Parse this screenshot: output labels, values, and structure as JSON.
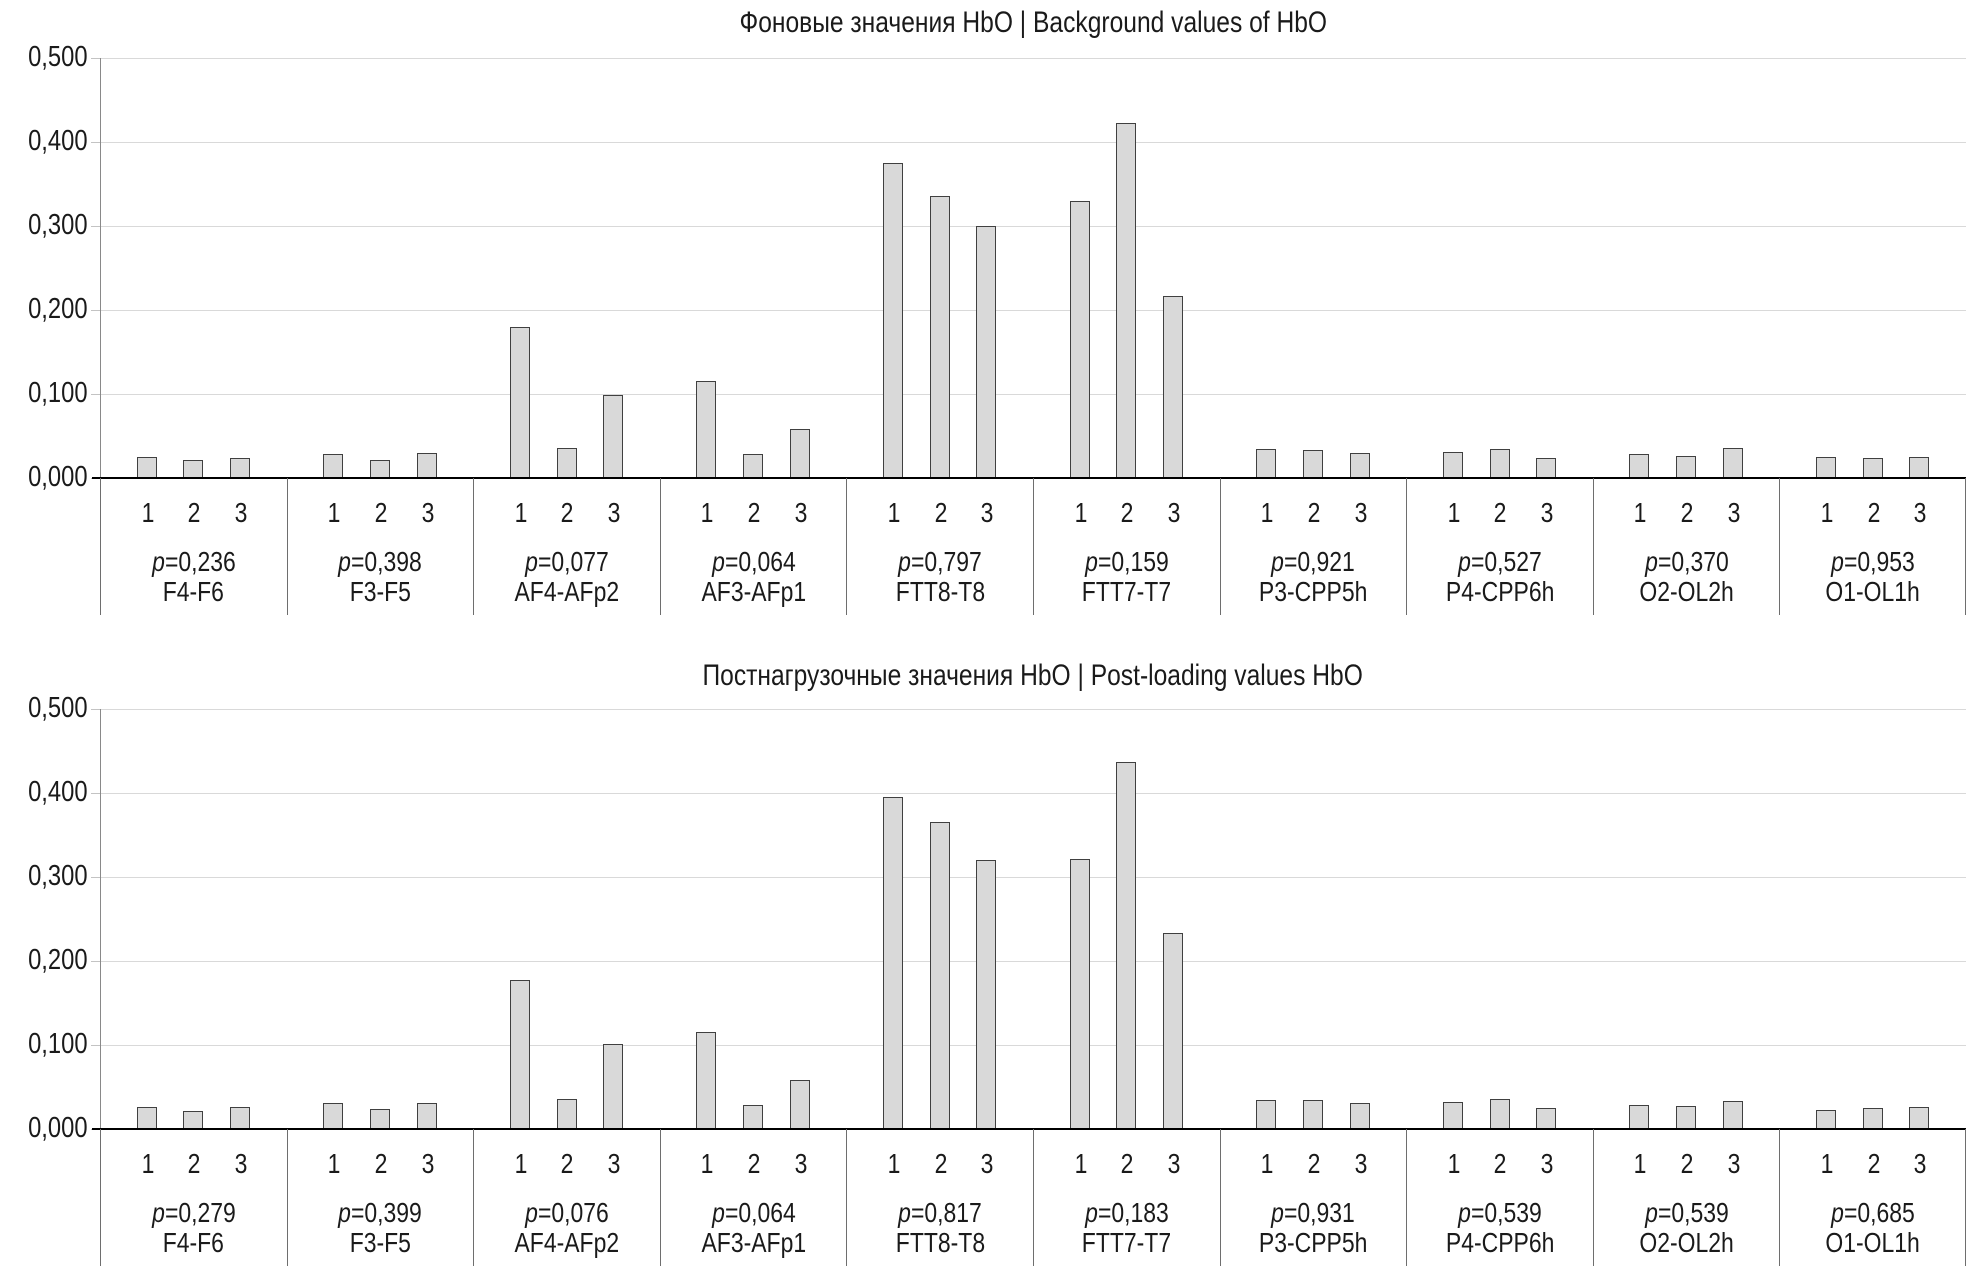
{
  "chart_data": [
    {
      "type": "bar",
      "title": "Фоновые значения HbO | Background values of HbO",
      "ylabel": "",
      "xlabel": "",
      "ylim": [
        0,
        0.5
      ],
      "grid": true,
      "legend": "none",
      "decimal_separator": ",",
      "ytick_labels": [
        "0,500",
        "0,400",
        "0,300",
        "0,200",
        "0,100",
        "0,000"
      ],
      "bar_labels": [
        "1",
        "2",
        "3"
      ],
      "bar_color": "#d9d9d9",
      "bar_border_color": "#404040",
      "groups": [
        {
          "channel": "F4-F6",
          "p_label": "p=0,236",
          "values": [
            0.025,
            0.021,
            0.024
          ]
        },
        {
          "channel": "F3-F5",
          "p_label": "p=0,398",
          "values": [
            0.029,
            0.022,
            0.03
          ]
        },
        {
          "channel": "AF4-AFp2",
          "p_label": "p=0,077",
          "values": [
            0.18,
            0.036,
            0.099
          ]
        },
        {
          "channel": "AF3-AFp1",
          "p_label": "p=0,064",
          "values": [
            0.116,
            0.029,
            0.058
          ]
        },
        {
          "channel": "FTT8-T8",
          "p_label": "p=0,797",
          "values": [
            0.375,
            0.336,
            0.3
          ]
        },
        {
          "channel": "FTT7-T7",
          "p_label": "p=0,159",
          "values": [
            0.33,
            0.423,
            0.217
          ]
        },
        {
          "channel": "P3-CPP5h",
          "p_label": "p=0,921",
          "values": [
            0.035,
            0.033,
            0.03
          ]
        },
        {
          "channel": "P4-CPP6h",
          "p_label": "p=0,527",
          "values": [
            0.031,
            0.035,
            0.024
          ]
        },
        {
          "channel": "O2-OL2h",
          "p_label": "p=0,370",
          "values": [
            0.028,
            0.026,
            0.036
          ]
        },
        {
          "channel": "O1-OL1h",
          "p_label": "p=0,953",
          "values": [
            0.025,
            0.024,
            0.025
          ]
        }
      ]
    },
    {
      "type": "bar",
      "title": "Постнагрузочные значения HbO | Post-loading values HbO",
      "ylabel": "",
      "xlabel": "",
      "ylim": [
        0,
        0.5
      ],
      "grid": true,
      "legend": "none",
      "decimal_separator": ",",
      "ytick_labels": [
        "0,500",
        "0,400",
        "0,300",
        "0,200",
        "0,100",
        "0,000"
      ],
      "bar_labels": [
        "1",
        "2",
        "3"
      ],
      "bar_color": "#d9d9d9",
      "bar_border_color": "#404040",
      "groups": [
        {
          "channel": "F4-F6",
          "p_label": "p=0,279",
          "values": [
            0.026,
            0.022,
            0.026
          ]
        },
        {
          "channel": "F3-F5",
          "p_label": "p=0,399",
          "values": [
            0.031,
            0.024,
            0.031
          ]
        },
        {
          "channel": "AF4-AFp2",
          "p_label": "p=0,076",
          "values": [
            0.177,
            0.036,
            0.101
          ]
        },
        {
          "channel": "AF3-AFp1",
          "p_label": "p=0,064",
          "values": [
            0.115,
            0.029,
            0.058
          ]
        },
        {
          "channel": "FTT8-T8",
          "p_label": "p=0,817",
          "values": [
            0.395,
            0.365,
            0.32
          ]
        },
        {
          "channel": "FTT7-T7",
          "p_label": "p=0,183",
          "values": [
            0.322,
            0.437,
            0.233
          ]
        },
        {
          "channel": "P3-CPP5h",
          "p_label": "p=0,931",
          "values": [
            0.035,
            0.034,
            0.031
          ]
        },
        {
          "channel": "P4-CPP6h",
          "p_label": "p=0,539",
          "values": [
            0.032,
            0.036,
            0.025
          ]
        },
        {
          "channel": "O2-OL2h",
          "p_label": "p=0,539",
          "values": [
            0.028,
            0.027,
            0.033
          ]
        },
        {
          "channel": "O1-OL1h",
          "p_label": "p=0,685",
          "values": [
            0.023,
            0.025,
            0.026
          ]
        }
      ]
    }
  ]
}
